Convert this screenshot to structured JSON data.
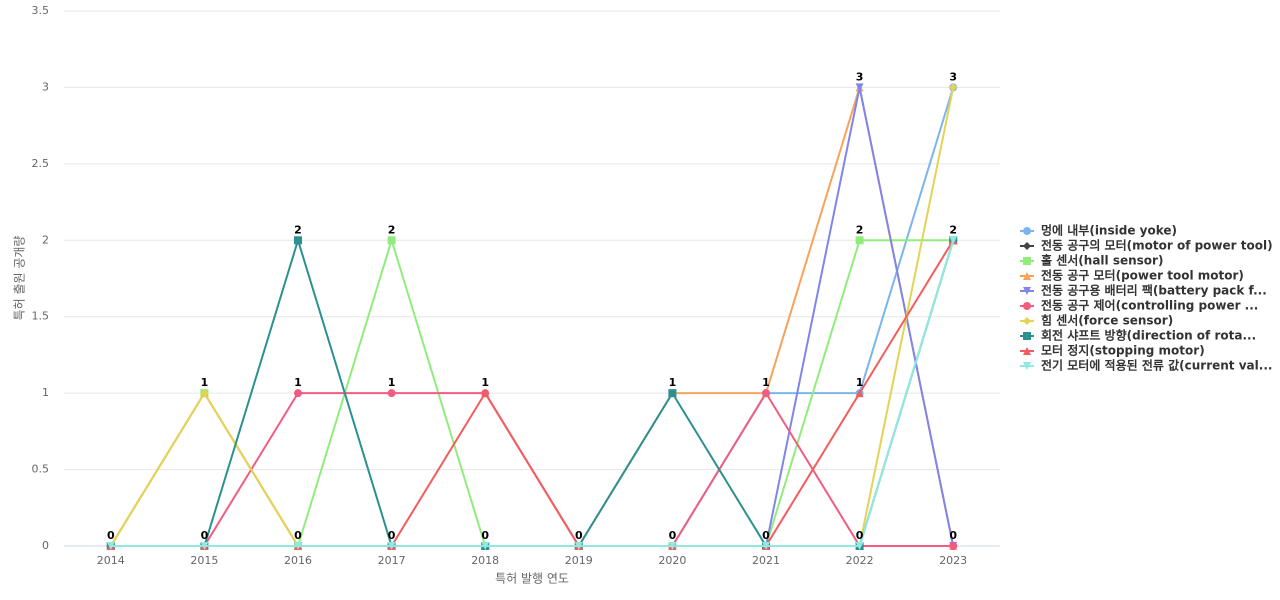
{
  "chart_data": {
    "type": "line",
    "x_label": "특허 발행 연도",
    "y_label": "특허 출원 공개량",
    "categories": [
      "2014",
      "2015",
      "2016",
      "2017",
      "2018",
      "2019",
      "2020",
      "2021",
      "2022",
      "2023"
    ],
    "ylim": [
      0,
      3.5
    ],
    "yticks": [
      0,
      0.5,
      1,
      1.5,
      2,
      2.5,
      3,
      3.5
    ],
    "grid": true,
    "series": [
      {
        "name": "멍에 내부(inside yoke)",
        "color": "#7cb5ec",
        "values": [
          0,
          0,
          0,
          0,
          0,
          0,
          0,
          1,
          1,
          3
        ]
      },
      {
        "name": "전동 공구의 모터(motor of power tool)",
        "color": "#434348",
        "values": [
          0,
          0,
          0,
          0,
          0,
          0,
          0,
          0,
          0,
          0
        ]
      },
      {
        "name": "홀 센서(hall sensor)",
        "color": "#90ed7d",
        "values": [
          0,
          1,
          0,
          2,
          0,
          0,
          0,
          0,
          2,
          2
        ]
      },
      {
        "name": "전동 공구 모터(power tool motor)",
        "color": "#f7a35c",
        "values": [
          0,
          1,
          0,
          0,
          0,
          0,
          1,
          1,
          3,
          0
        ]
      },
      {
        "name": "전동 공구용 배터리 팩(battery pack f...",
        "color": "#8085e9",
        "values": [
          0,
          0,
          0,
          0,
          0,
          0,
          0,
          0,
          3,
          0
        ]
      },
      {
        "name": "전동 공구 제어(controlling power ...",
        "color": "#f15c80",
        "values": [
          0,
          0,
          1,
          1,
          1,
          0,
          0,
          1,
          0,
          0
        ]
      },
      {
        "name": "힘 센서(force sensor)",
        "color": "#e4d354",
        "values": [
          0,
          1,
          0,
          0,
          0,
          0,
          0,
          0,
          0,
          3
        ]
      },
      {
        "name": "회전 샤프트 방향(direction of rota...",
        "color": "#2b908f",
        "values": [
          0,
          0,
          2,
          0,
          0,
          0,
          1,
          0,
          0,
          2
        ]
      },
      {
        "name": "모터 정지(stopping motor)",
        "color": "#f45b5b",
        "values": [
          0,
          0,
          0,
          0,
          1,
          0,
          0,
          0,
          1,
          2
        ]
      },
      {
        "name": "전기 모터에 적용된 전류 값(current val...",
        "color": "#91e8e1",
        "values": [
          0,
          0,
          0,
          0,
          0,
          0,
          0,
          0,
          0,
          2
        ]
      }
    ]
  }
}
